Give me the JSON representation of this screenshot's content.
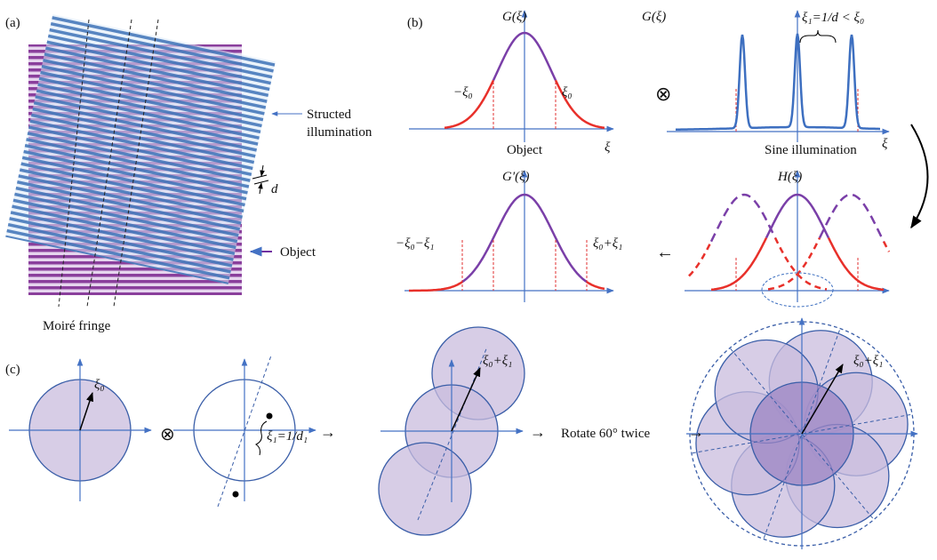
{
  "panel_a": {
    "label": "(a)",
    "illumination_label": [
      "Structed",
      "illumination"
    ],
    "period_label": "d",
    "object_label": "Object",
    "moire_label": "Moiré fringe"
  },
  "panel_b": {
    "label": "(b)",
    "object_spectrum": {
      "title": "G(ξ)",
      "left_cutoff": "−ξ₀",
      "right_cutoff": "ξ₀",
      "caption": "Object",
      "axis": "ξ"
    },
    "convolution": "⊗",
    "illumination_spectrum": {
      "title": "G(ξ)",
      "spacing": "ξ₁=1/d < ξ₀",
      "caption": "Sine illumination",
      "axis": "ξ"
    },
    "result": {
      "title": "G′(ξ)",
      "left": "−ξ₀−ξ₁",
      "right": "ξ₀+ξ₁"
    },
    "arrow": "←",
    "shifted": {
      "title": "H(ξ)"
    }
  },
  "panel_c": {
    "label": "(c)",
    "radius": "ξ₀",
    "convolution": "⊗",
    "frequency": "ξ₁=1/d₁",
    "arrows": [
      "→",
      "→",
      "→"
    ],
    "extended": "ξ₀+ξ₁",
    "step": "Rotate 60° twice",
    "final": "ξ₀+ξ₁"
  }
}
